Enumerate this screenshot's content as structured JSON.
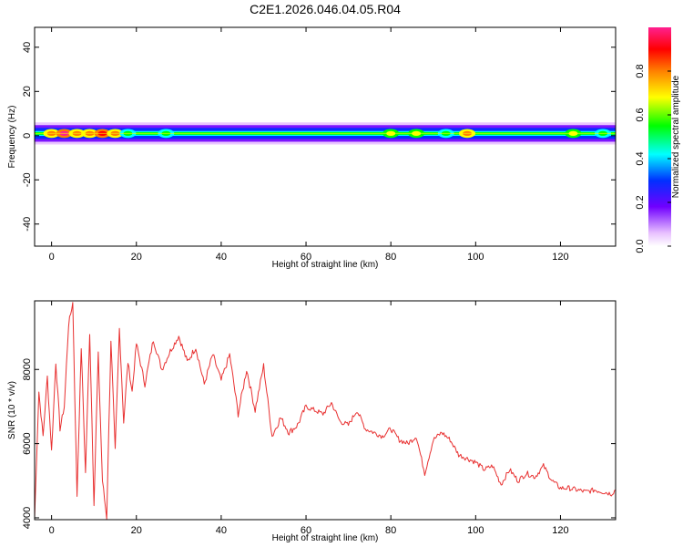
{
  "title": "C2E1.2026.046.04.05.R04",
  "chart_data": [
    {
      "type": "heatmap",
      "xlabel": "Height of straight line (km)",
      "ylabel": "Frequency (Hz)",
      "xlim": [
        -4,
        133
      ],
      "ylim": [
        -50,
        49
      ],
      "xticks": [
        0,
        20,
        40,
        60,
        80,
        100,
        120
      ],
      "xtick_labels": [
        "0",
        "20",
        "40",
        "60",
        "80",
        "100",
        "120"
      ],
      "yticks": [
        -40,
        -20,
        0,
        20,
        40
      ],
      "ytick_labels": [
        "-40",
        "-20",
        "0",
        "20",
        "40"
      ],
      "band": {
        "center_hz": 1,
        "half_width_hz": 5
      },
      "hotspots": [
        {
          "x": 0,
          "value": 0.8
        },
        {
          "x": 3,
          "value": 0.95
        },
        {
          "x": 6,
          "value": 0.75
        },
        {
          "x": 9,
          "value": 0.8
        },
        {
          "x": 12,
          "value": 0.85
        },
        {
          "x": 15,
          "value": 0.75
        },
        {
          "x": 18,
          "value": 0.5
        },
        {
          "x": 27,
          "value": 0.55
        },
        {
          "x": 80,
          "value": 0.6
        },
        {
          "x": 86,
          "value": 0.6
        },
        {
          "x": 93,
          "value": 0.55
        },
        {
          "x": 98,
          "value": 0.75
        },
        {
          "x": 123,
          "value": 0.6
        },
        {
          "x": 130,
          "value": 0.55
        }
      ],
      "colorbar": {
        "label": "Normalized spectral amplitude",
        "range": [
          0,
          1
        ],
        "ticks": [
          0.0,
          0.2,
          0.4,
          0.6,
          0.8
        ],
        "tick_labels": [
          "0.0",
          "0.2",
          "0.4",
          "0.6",
          "0.8"
        ]
      }
    },
    {
      "type": "line",
      "xlabel": "Height of straight line (km)",
      "ylabel": "SNR (10 * v/v)",
      "xlim": [
        -4,
        133
      ],
      "ylim": [
        3950,
        9850
      ],
      "xticks": [
        0,
        20,
        40,
        60,
        80,
        100,
        120
      ],
      "xtick_labels": [
        "0",
        "20",
        "40",
        "60",
        "80",
        "100",
        "120"
      ],
      "yticks": [
        4000,
        6000,
        8000
      ],
      "ytick_labels": [
        "4000",
        "6000",
        "8000"
      ],
      "series": [
        {
          "name": "SNR",
          "color": "#e83030",
          "x": [
            -4,
            -3,
            -2,
            -1,
            0,
            1,
            2,
            3,
            4,
            5,
            6,
            7,
            8,
            9,
            10,
            11,
            12,
            13,
            14,
            15,
            16,
            17,
            18,
            19,
            20,
            22,
            24,
            26,
            28,
            30,
            32,
            34,
            36,
            38,
            40,
            42,
            44,
            46,
            48,
            50,
            52,
            54,
            56,
            58,
            60,
            62,
            64,
            66,
            68,
            70,
            72,
            74,
            76,
            78,
            80,
            82,
            84,
            86,
            88,
            90,
            92,
            94,
            96,
            98,
            100,
            102,
            104,
            106,
            108,
            110,
            112,
            114,
            116,
            118,
            120,
            122,
            124,
            126,
            128,
            130,
            132,
            133
          ],
          "y": [
            4000,
            7400,
            6200,
            7800,
            5800,
            8200,
            6400,
            7000,
            9200,
            9800,
            4600,
            8600,
            5200,
            9000,
            4400,
            8400,
            5000,
            4000,
            8800,
            5800,
            9100,
            6600,
            8200,
            7400,
            8700,
            7600,
            8800,
            8000,
            8500,
            8900,
            8200,
            8600,
            7600,
            8400,
            7700,
            8400,
            6800,
            8000,
            6900,
            8100,
            6200,
            6700,
            6300,
            6500,
            7000,
            6900,
            6800,
            7100,
            6600,
            6500,
            6900,
            6400,
            6300,
            6200,
            6400,
            6100,
            6000,
            6200,
            5200,
            6100,
            6300,
            6100,
            5700,
            5600,
            5500,
            5300,
            5400,
            4900,
            5300,
            5000,
            5200,
            5100,
            5400,
            5000,
            4800,
            4800,
            4750,
            4700,
            4750,
            4700,
            4650,
            4750
          ]
        }
      ]
    }
  ]
}
